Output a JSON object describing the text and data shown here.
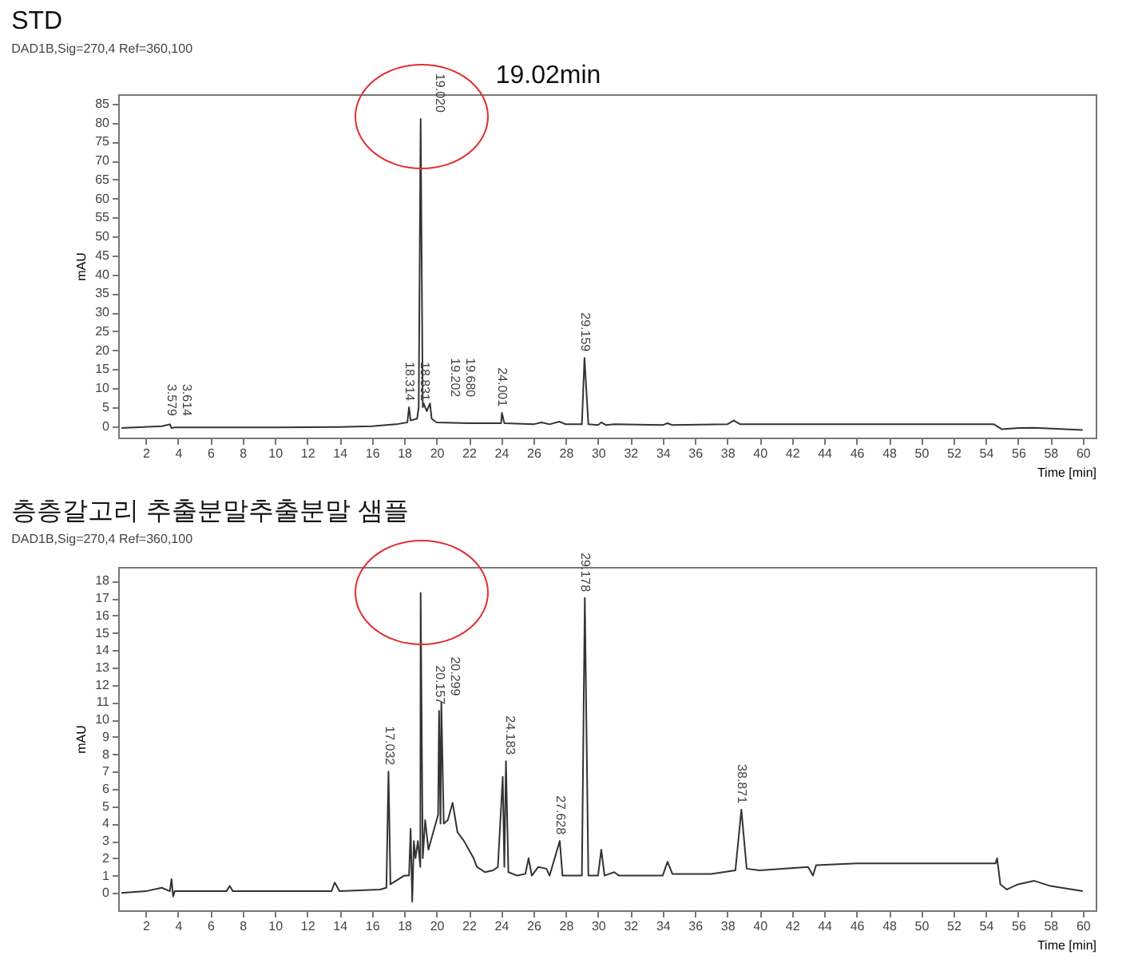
{
  "chart_data": [
    {
      "type": "line",
      "title": "STD",
      "subtitle": "DAD1B,Sig=270,4 Ref=360,100",
      "xlabel": "Time [min]",
      "ylabel": "mAU",
      "xlim": [
        0.3,
        60.8
      ],
      "xticks": [
        2,
        4,
        6,
        8,
        10,
        12,
        14,
        16,
        18,
        20,
        22,
        24,
        26,
        28,
        30,
        32,
        34,
        36,
        38,
        40,
        42,
        44,
        46,
        48,
        50,
        52,
        54,
        56,
        58,
        60
      ],
      "ylim": [
        -3,
        87.5
      ],
      "yticks": [
        0,
        5,
        10,
        15,
        20,
        25,
        30,
        35,
        40,
        45,
        50,
        55,
        60,
        65,
        70,
        75,
        80,
        85
      ],
      "series": [
        {
          "color": "#333333",
          "x": [
            0.5,
            3,
            3.5,
            3.6,
            3.8,
            6,
            10,
            14,
            16,
            17.5,
            18.2,
            18.3,
            18.4,
            18.8,
            18.9,
            19.02,
            19.15,
            19.2,
            19.4,
            19.6,
            19.7,
            20,
            22,
            24,
            24.05,
            24.2,
            26,
            26.5,
            27,
            27.6,
            28,
            29,
            29.16,
            29.4,
            30,
            30.2,
            30.5,
            31,
            34,
            34.3,
            34.6,
            38,
            38.4,
            38.8,
            44,
            54.5,
            55,
            56,
            57,
            60
          ],
          "values": [
            -0.5,
            0,
            0.5,
            -0.5,
            -0.3,
            -0.3,
            -0.3,
            -0.2,
            0,
            0.5,
            1,
            5,
            1.5,
            2,
            5,
            81,
            5,
            6,
            4,
            6,
            2,
            1,
            0.8,
            0.8,
            3.5,
            0.8,
            0.5,
            1,
            0.5,
            1.2,
            0.5,
            0.5,
            18,
            0.5,
            0.3,
            1,
            0.3,
            0.5,
            0.3,
            0.8,
            0.3,
            0.5,
            1.5,
            0.5,
            0.5,
            0.5,
            -0.8,
            -0.5,
            -0.4,
            -1
          ]
        }
      ],
      "annotations": [
        "19.02min",
        {
          "text": "3.579",
          "x": 3.579,
          "y": 1
        },
        {
          "text": "3.614",
          "x": 4.3,
          "y": 1
        },
        {
          "text": "18.314",
          "x": 18.314,
          "y": 5
        },
        {
          "text": "18.831",
          "x": 18.9,
          "y": 5
        },
        {
          "text": "19.020",
          "x": 19.02,
          "y": 81
        },
        {
          "text": "19.202",
          "x": 19.4,
          "y": 6
        },
        {
          "text": "19.680",
          "x": 19.9,
          "y": 6
        },
        {
          "text": "24.001",
          "x": 24.001,
          "y": 3.5
        },
        {
          "text": "29.159",
          "x": 29.159,
          "y": 18
        }
      ]
    },
    {
      "type": "line",
      "title": "층층갈고리 추출분말추출분말 샘플",
      "subtitle": "DAD1B,Sig=270,4 Ref=360,100",
      "xlabel": "Time [min]",
      "ylabel": "mAU",
      "xlim": [
        0.3,
        60.8
      ],
      "xticks": [
        2,
        4,
        6,
        8,
        10,
        12,
        14,
        16,
        18,
        20,
        22,
        24,
        26,
        28,
        30,
        32,
        34,
        36,
        38,
        40,
        42,
        44,
        46,
        48,
        50,
        52,
        54,
        56,
        58,
        60
      ],
      "ylim": [
        -1,
        18.8
      ],
      "yticks": [
        0,
        1,
        2,
        3,
        4,
        5,
        6,
        7,
        8,
        9,
        10,
        11,
        12,
        13,
        14,
        15,
        16,
        17,
        18
      ],
      "series": [
        {
          "color": "#333333",
          "x": [
            0.5,
            2,
            3,
            3.5,
            3.6,
            3.7,
            3.8,
            7,
            7.2,
            7.4,
            13.5,
            13.7,
            14,
            16.5,
            16.9,
            17.03,
            17.15,
            18,
            18.3,
            18.4,
            18.5,
            18.6,
            18.7,
            18.85,
            19.0,
            19.02,
            19.15,
            19.3,
            19.5,
            19.8,
            20.1,
            20.16,
            20.25,
            20.3,
            20.45,
            20.7,
            21,
            21.3,
            21.7,
            22,
            22.3,
            22.5,
            23,
            23.5,
            23.8,
            24.1,
            24.2,
            24.3,
            24.45,
            25,
            25.5,
            25.7,
            25.9,
            26.3,
            26.8,
            27,
            27.63,
            27.8,
            28.5,
            29,
            29.18,
            29.4,
            30,
            30.2,
            30.4,
            31,
            31.3,
            34,
            34.3,
            34.6,
            37,
            38.5,
            38.87,
            39.2,
            40,
            43,
            43.3,
            43.5,
            46,
            54.6,
            54.7,
            54.9,
            55.3,
            56,
            57,
            58,
            60
          ],
          "values": [
            0,
            0.1,
            0.3,
            0.1,
            0.8,
            -0.2,
            0.1,
            0.1,
            0.4,
            0.1,
            0.1,
            0.6,
            0.1,
            0.2,
            0.3,
            7,
            0.5,
            1,
            1,
            3.7,
            -0.5,
            3,
            2,
            3,
            1.5,
            17.3,
            2,
            4.2,
            2.5,
            3.5,
            4.5,
            10.5,
            4,
            11,
            4,
            4.2,
            5.2,
            3.5,
            3,
            2.5,
            2,
            1.5,
            1.2,
            1.3,
            1.5,
            6.7,
            1.5,
            7.6,
            1.2,
            1,
            1.1,
            2,
            1,
            1.5,
            1.4,
            1,
            3,
            1,
            1,
            1,
            17,
            1,
            1,
            2.5,
            1,
            1.2,
            1,
            1,
            1.8,
            1.1,
            1.1,
            1.3,
            4.8,
            1.4,
            1.3,
            1.5,
            1,
            1.6,
            1.7,
            1.7,
            2,
            0.5,
            0.2,
            0.5,
            0.7,
            0.4,
            0.1
          ]
        }
      ],
      "annotations": [
        {
          "text": "17.032",
          "x": 17.032,
          "y": 7
        },
        {
          "text": "20.157",
          "x": 20.157,
          "y": 10.5
        },
        {
          "text": "20.299",
          "x": 20.6,
          "y": 11
        },
        {
          "text": "24.183",
          "x": 24.5,
          "y": 7.6
        },
        {
          "text": "27.628",
          "x": 27.628,
          "y": 3
        },
        {
          "text": "29.178",
          "x": 29.178,
          "y": 17
        },
        {
          "text": "38.871",
          "x": 38.871,
          "y": 4.8
        }
      ]
    }
  ]
}
